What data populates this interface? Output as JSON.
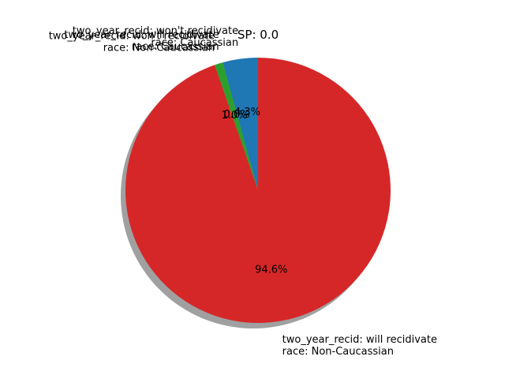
{
  "chart_data": {
    "type": "pie",
    "title": "SP: 0.0",
    "slices": [
      {
        "label_lines": [
          "two_year_recid: won't recidivate",
          "race: Caucassian"
        ],
        "value": 4.3,
        "pct_label": "4.3%",
        "color": "#1f77b4"
      },
      {
        "label_lines": [
          "two_year_recid: will recidivate",
          "race: Caucassian"
        ],
        "value": 0.0,
        "pct_label": "0.0%",
        "color": "#ff7f0e"
      },
      {
        "label_lines": [
          "two_year_recid: won't recidivate",
          "race: Non-Caucassian"
        ],
        "value": 1.0,
        "pct_label": "1.0%",
        "color": "#2ca02c"
      },
      {
        "label_lines": [
          "two_year_recid: will recidivate",
          "race: Non-Caucassian"
        ],
        "value": 94.6,
        "pct_label": "94.6%",
        "color": "#d62728"
      }
    ],
    "start_angle_deg": 90,
    "direction": "counterclockwise",
    "shadow": true
  }
}
